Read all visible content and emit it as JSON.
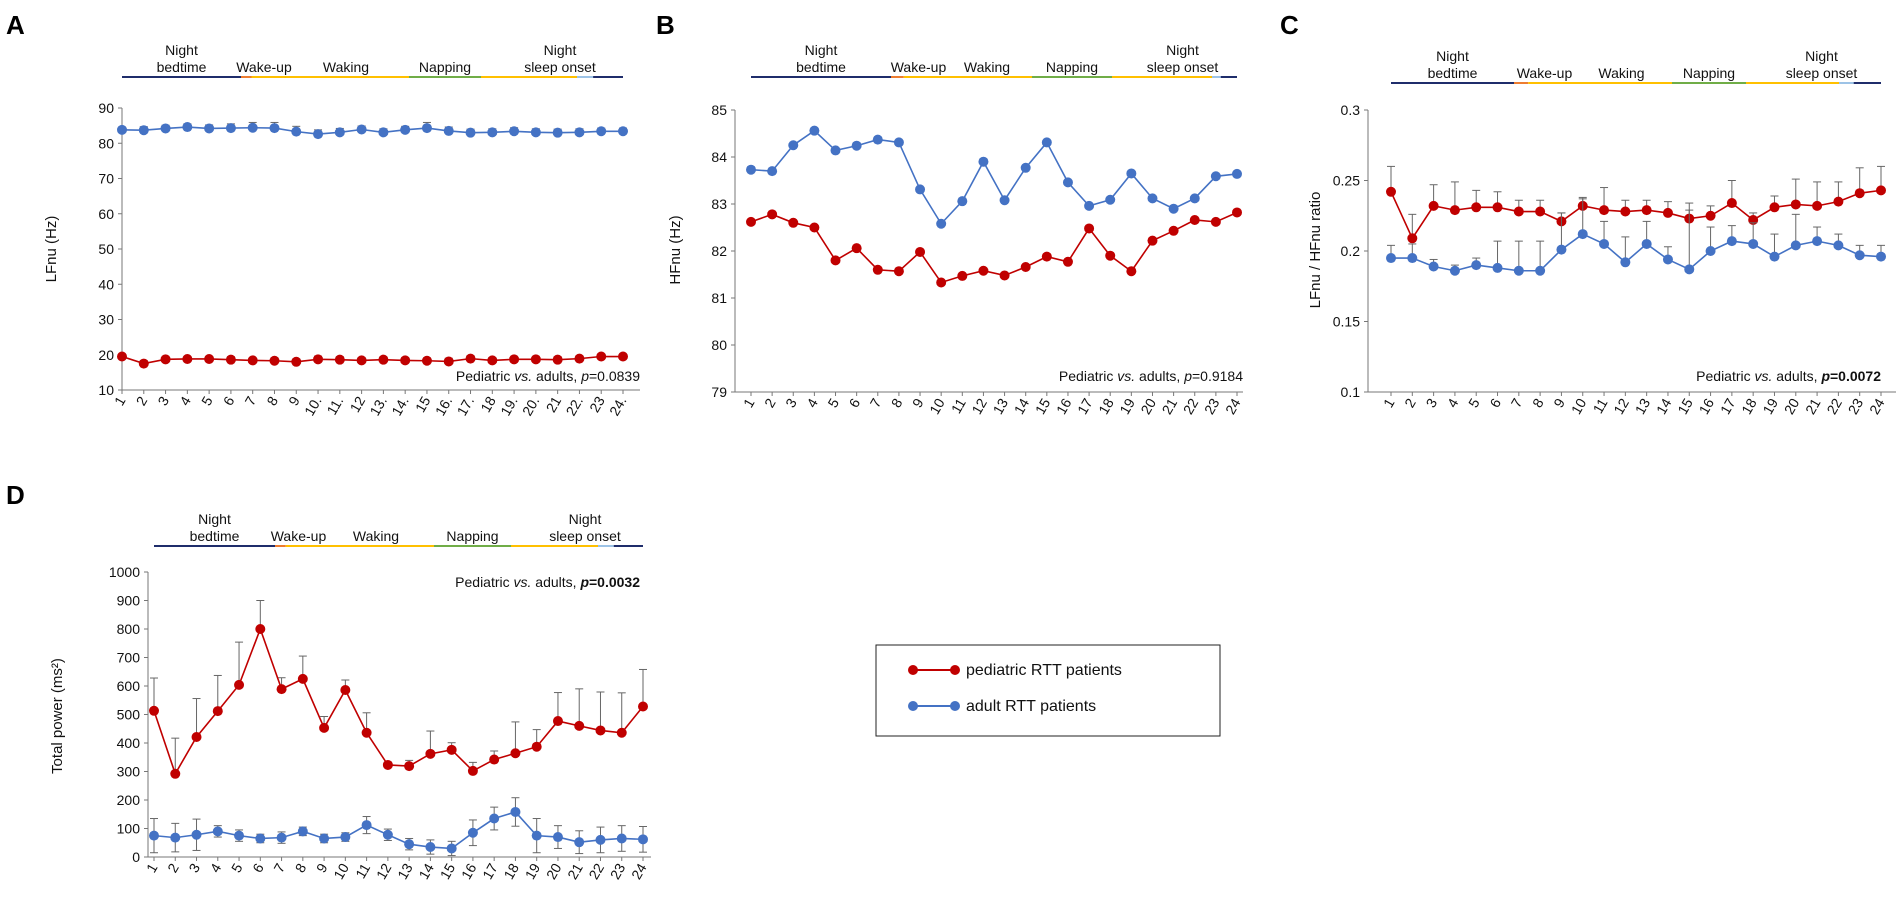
{
  "colors": {
    "pediatric": "#c00000",
    "adult": "#4472c4",
    "night": "#1f2d6b",
    "wakeup": "#ed7d31",
    "waking": "#ffc000",
    "napping": "#70ad47",
    "sleep_onset": "#9dc3e6"
  },
  "phases": {
    "night_bedtime": [
      "Night",
      "bedtime"
    ],
    "wake_up": "Wake-up",
    "waking": "Waking",
    "napping": "Napping",
    "night_sleep_onset": [
      "Night",
      "sleep onset"
    ]
  },
  "legend": {
    "pediatric": "pediatric RTT patients",
    "adult": "adult RTT patients"
  },
  "chart_data": [
    {
      "panel": "A",
      "type": "line",
      "ylabel": "LFnu (Hz)",
      "ylim": [
        10,
        90
      ],
      "yticks": [
        10,
        20,
        30,
        40,
        50,
        60,
        70,
        80,
        90
      ],
      "categories": [
        "1",
        "2",
        "3",
        "4",
        "5",
        "6",
        "7",
        "8",
        "9",
        "10.",
        "11.",
        "12",
        "13.",
        "14.",
        "15",
        "16.",
        "17.",
        "18",
        "19.",
        "20.",
        "21",
        "22.",
        "23",
        "24."
      ],
      "series": [
        {
          "name": "pediatric RTT patients",
          "values": [
            19.5,
            17.5,
            18.7,
            18.8,
            18.8,
            18.6,
            18.4,
            18.3,
            18.0,
            18.7,
            18.6,
            18.4,
            18.6,
            18.4,
            18.3,
            18.1,
            18.9,
            18.4,
            18.7,
            18.7,
            18.6,
            18.9,
            19.5,
            19.5
          ],
          "err": [
            0.6,
            0.8,
            0.7,
            0.7,
            0.7,
            0.8,
            0.7,
            0.8,
            0.8,
            0.9,
            0.8,
            0.8,
            0.7,
            0.8,
            0.8,
            0.9,
            0.8,
            0.8,
            0.7,
            0.7,
            0.8,
            0.7,
            0.7,
            0.7
          ]
        },
        {
          "name": "adult RTT patients",
          "values": [
            83.8,
            83.7,
            84.2,
            84.6,
            84.2,
            84.3,
            84.4,
            84.3,
            83.3,
            82.6,
            83.1,
            83.9,
            83.1,
            83.8,
            84.3,
            83.5,
            83.0,
            83.1,
            83.4,
            83.1,
            83.0,
            83.1,
            83.4,
            83.4
          ],
          "err": [
            0.8,
            1.0,
            0.9,
            0.9,
            1.0,
            1.2,
            1.5,
            1.6,
            1.5,
            1.2,
            1.1,
            1.0,
            1.0,
            1.0,
            1.6,
            1.1,
            1.0,
            1.0,
            1.0,
            1.0,
            1.0,
            1.0,
            0.9,
            0.9
          ]
        }
      ],
      "annotation": {
        "text": "Pediatric ",
        "vs": "vs.",
        "mid": " adults, ",
        "p": "p",
        "pval": "=0.0839"
      }
    },
    {
      "panel": "B",
      "type": "line",
      "ylabel": "HFnu (Hz)",
      "ylim": [
        79,
        85
      ],
      "yticks": [
        79,
        80,
        81,
        82,
        83,
        84,
        85
      ],
      "categories": [
        "1",
        "2",
        "3",
        "4",
        "5",
        "6",
        "7",
        "8",
        "9",
        "10",
        "11",
        "12",
        "13",
        "14",
        "15",
        "16",
        "17",
        "18",
        "19",
        "20",
        "21",
        "22",
        "23",
        "24"
      ],
      "series": [
        {
          "name": "pediatric RTT patients",
          "values": [
            82.62,
            82.78,
            82.6,
            82.5,
            81.8,
            82.06,
            81.6,
            81.57,
            81.98,
            81.33,
            81.47,
            81.58,
            81.48,
            81.66,
            81.88,
            81.77,
            82.48,
            81.9,
            81.57,
            82.22,
            82.43,
            82.66,
            82.62,
            82.82
          ],
          "err": []
        },
        {
          "name": "adult RTT patients",
          "values": [
            83.73,
            83.7,
            84.25,
            84.56,
            84.14,
            84.24,
            84.37,
            84.31,
            83.31,
            82.58,
            83.06,
            83.9,
            83.08,
            83.77,
            84.31,
            83.46,
            82.96,
            83.09,
            83.65,
            83.12,
            82.9,
            83.12,
            83.59,
            83.64
          ],
          "err": []
        }
      ],
      "annotation": {
        "text": "Pediatric ",
        "vs": "vs.",
        "mid": " adults, ",
        "p": "p",
        "pval": "=0.9184"
      }
    },
    {
      "panel": "C",
      "type": "line",
      "ylabel": "LFnu / HFnu ratio",
      "ylim": [
        0.1,
        0.3
      ],
      "yticks": [
        "0.1",
        "0.15",
        "0.2",
        "0.25",
        "0.3"
      ],
      "categories": [
        "1",
        "2",
        "3",
        "4",
        "5",
        "6",
        "7",
        "8",
        "9",
        "10",
        "11",
        "12",
        "13",
        "14",
        "15",
        "16",
        "17",
        "18",
        "19",
        "20",
        "21",
        "22",
        "23",
        "24"
      ],
      "series": [
        {
          "name": "pediatric RTT patients",
          "values": [
            0.242,
            0.209,
            0.232,
            0.229,
            0.231,
            0.231,
            0.228,
            0.228,
            0.221,
            0.232,
            0.229,
            0.228,
            0.229,
            0.227,
            0.223,
            0.225,
            0.234,
            0.222,
            0.231,
            0.233,
            0.232,
            0.235,
            0.241,
            0.243
          ],
          "err": [
            0.018,
            0.017,
            0.015,
            0.02,
            0.012,
            0.011,
            0.008,
            0.008,
            0.006,
            0.006,
            0.016,
            0.008,
            0.007,
            0.008,
            0.006,
            0.007,
            0.016,
            0.005,
            0.008,
            0.018,
            0.017,
            0.014,
            0.018,
            0.017
          ]
        },
        {
          "name": "adult RTT patients",
          "values": [
            0.195,
            0.195,
            0.189,
            0.186,
            0.19,
            0.188,
            0.186,
            0.186,
            0.201,
            0.212,
            0.205,
            0.192,
            0.205,
            0.194,
            0.187,
            0.2,
            0.207,
            0.205,
            0.196,
            0.204,
            0.207,
            0.204,
            0.197,
            0.196
          ],
          "err": [
            0.009,
            0.01,
            0.005,
            0.004,
            0.005,
            0.019,
            0.021,
            0.021,
            0.026,
            0.025,
            0.016,
            0.018,
            0.016,
            0.009,
            0.047,
            0.017,
            0.011,
            0.015,
            0.016,
            0.022,
            0.01,
            0.008,
            0.007,
            0.008
          ]
        }
      ],
      "annotation": {
        "text": "Pediatric ",
        "vs": "vs.",
        "mid": " adults, ",
        "p": "p",
        "pval": "=0.0072",
        "bold_p": true
      }
    },
    {
      "panel": "D",
      "type": "line",
      "ylabel": "Total power (ms²)",
      "ylim": [
        0,
        1000
      ],
      "yticks": [
        0,
        100,
        200,
        300,
        400,
        500,
        600,
        700,
        800,
        900,
        1000
      ],
      "categories": [
        "1",
        "2",
        "3",
        "4",
        "5",
        "6",
        "7",
        "8",
        "9",
        "10",
        "11",
        "12",
        "13",
        "14",
        "15",
        "16",
        "17",
        "18",
        "19",
        "20",
        "21",
        "22",
        "23",
        "24"
      ],
      "series": [
        {
          "name": "pediatric RTT patients",
          "values": [
            513,
            292,
            421,
            512,
            604,
            800,
            589,
            625,
            453,
            586,
            436,
            323,
            319,
            362,
            376,
            302,
            342,
            364,
            387,
            477,
            460,
            444,
            436,
            528
          ],
          "err": [
            115,
            125,
            135,
            125,
            150,
            100,
            40,
            80,
            40,
            35,
            70,
            10,
            20,
            80,
            25,
            30,
            30,
            110,
            60,
            100,
            130,
            135,
            140,
            130
          ]
        },
        {
          "name": "adult RTT patients",
          "values": [
            75,
            68,
            78,
            90,
            75,
            65,
            68,
            90,
            65,
            70,
            112,
            78,
            45,
            35,
            30,
            85,
            135,
            158,
            75,
            70,
            52,
            60,
            65,
            62
          ],
          "err": [
            60,
            50,
            55,
            20,
            20,
            15,
            20,
            15,
            15,
            15,
            30,
            20,
            20,
            25,
            25,
            45,
            40,
            50,
            60,
            40,
            40,
            45,
            45,
            45
          ]
        }
      ],
      "annotation": {
        "text": "Pediatric ",
        "vs": "vs.",
        "mid": " adults, ",
        "p": "p",
        "pval": "=0.0032",
        "bold_p": true
      }
    }
  ]
}
